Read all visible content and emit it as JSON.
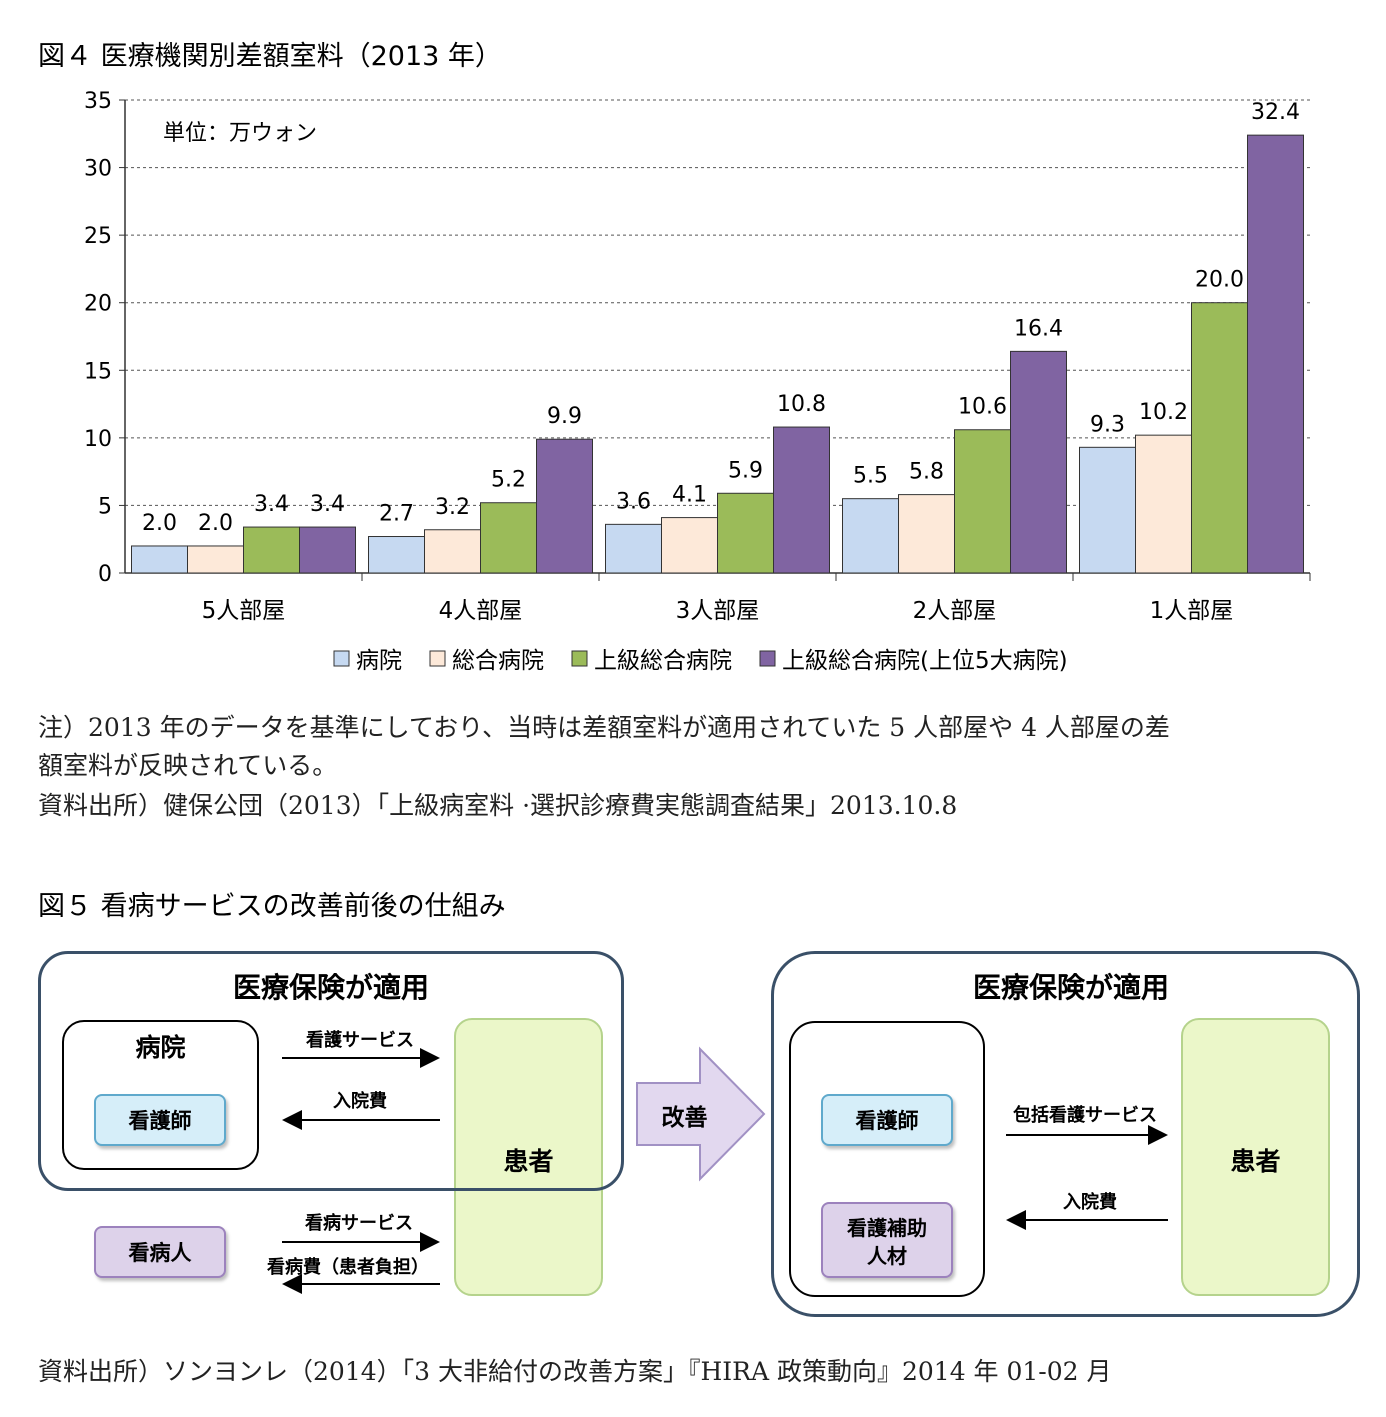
{
  "figure4": {
    "title": "図４ 医療機関別差額室料（2013 年）",
    "note_line1": "注）2013 年のデータを基準にしており、当時は差額室料が適用されていた 5 人部屋や 4 人部屋の差",
    "note_line2": "額室料が反映されている。",
    "source": "資料出所）健保公団（2013）「上級病室料 ·選択診療費実態調査結果」2013.10.8"
  },
  "chart_data": {
    "type": "bar",
    "unit_label": "単位：万ウォン",
    "categories": [
      "5人部屋",
      "4人部屋",
      "3人部屋",
      "2人部屋",
      "1人部屋"
    ],
    "series": [
      {
        "name": "病院",
        "values": [
          2.0,
          2.7,
          3.6,
          5.5,
          9.3
        ],
        "color": "#c6d9f1"
      },
      {
        "name": "総合病院",
        "values": [
          2.0,
          3.2,
          4.1,
          5.8,
          10.2
        ],
        "color": "#fde9d9"
      },
      {
        "name": "上級総合病院",
        "values": [
          3.4,
          5.2,
          5.9,
          10.6,
          20.0
        ],
        "color": "#9bbb59"
      },
      {
        "name": "上級総合病院(上位5大病院)",
        "values": [
          3.4,
          9.9,
          10.8,
          16.4,
          32.4
        ],
        "color": "#8064a2"
      }
    ],
    "ylim": [
      0,
      35
    ],
    "yticks": [
      0,
      5,
      10,
      15,
      20,
      25,
      30,
      35
    ],
    "grid": true,
    "legend_position": "bottom"
  },
  "figure5": {
    "title": "図５ 看病サービスの改善前後の仕組み",
    "before": {
      "insurance_title": "医療保険が適用",
      "hospital_label": "病院",
      "nurse_label": "看護師",
      "patient_label": "患者",
      "caregiver_label": "看病人",
      "arrow_nursing_service": "看護サービス",
      "arrow_admission_fee": "入院費",
      "arrow_care_service": "看病サービス",
      "arrow_care_fee": "看病費（患者負担）"
    },
    "improvement_label": "改善",
    "after": {
      "insurance_title": "医療保険が適用",
      "nurse_label": "看護師",
      "assistant_label_line1": "看護補助",
      "assistant_label_line2": "人材",
      "patient_label": "患者",
      "arrow_comprehensive_service": "包括看護サービス",
      "arrow_admission_fee": "入院費"
    },
    "source": "資料出所）ソンヨンレ（2014）「3 大非給付の改善方案」『HIRA 政策動向』2014 年 01-02 月"
  },
  "colors": {
    "frame_border": "#3a5068",
    "patient_fill": "#ebf7c9",
    "patient_border": "#b5d38c",
    "nurse_fill": "#d6eef9",
    "nurse_border": "#5fa9cc",
    "caregiver_fill": "#ddd2ea",
    "caregiver_border": "#9c82bd",
    "arrow_fill": "#e2d8ef",
    "arrow_border": "#a191c4"
  }
}
